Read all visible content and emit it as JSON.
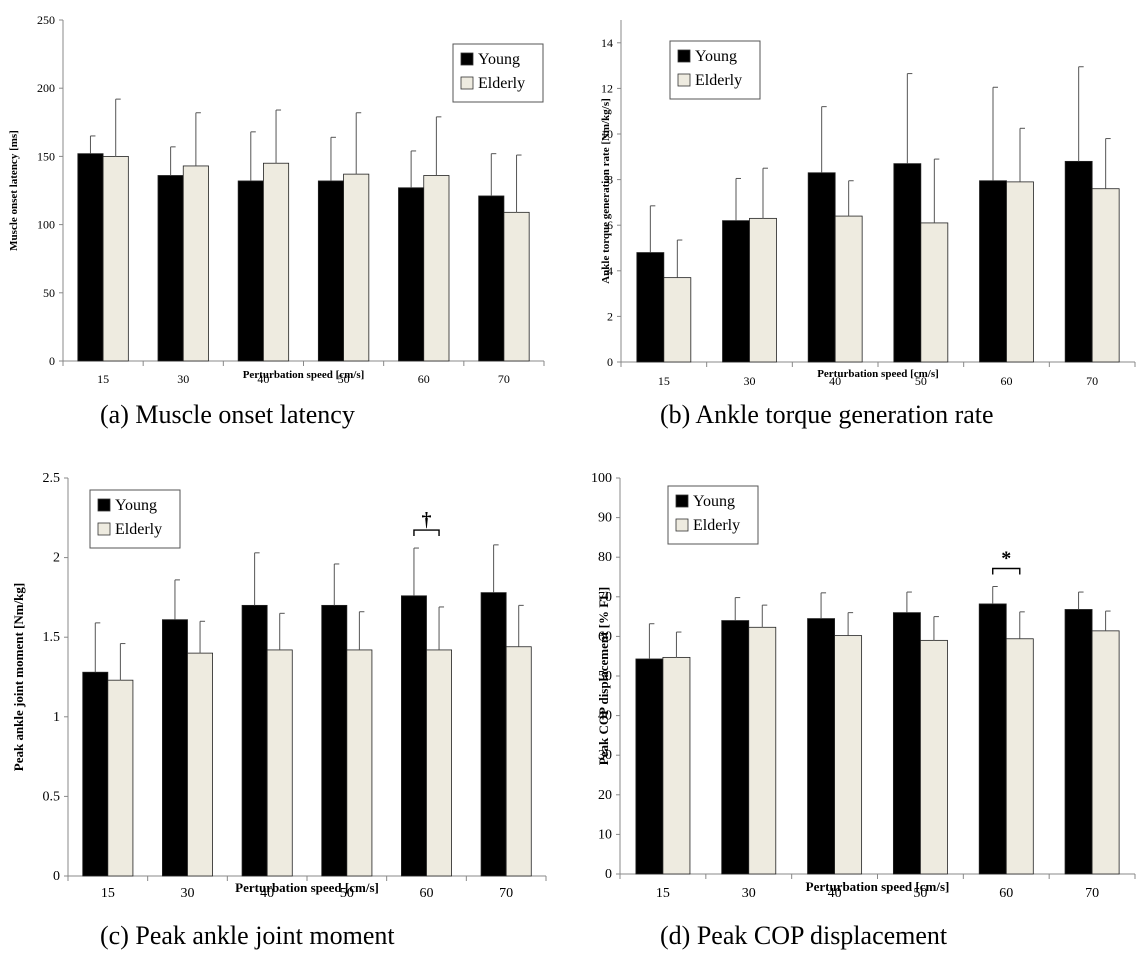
{
  "colors": {
    "young": "#000000",
    "elderly": "#eeebe0",
    "axis": "#888888"
  },
  "legend": {
    "young": "Young",
    "elderly": "Elderly"
  },
  "chart_data": [
    {
      "id": "a",
      "type": "bar",
      "caption": "(a) Muscle onset latency",
      "xlabel": "Perturbation speed [cm/s]",
      "ylabel": "Muscle onset latency [ms]",
      "ylim": [
        0,
        250
      ],
      "yticks": [
        "0",
        "50",
        "100",
        "150",
        "200",
        "250"
      ],
      "categories": [
        "15",
        "30",
        "40",
        "50",
        "60",
        "70"
      ],
      "legend_position": "top-right",
      "series": [
        {
          "name": "Young",
          "values": [
            152,
            136,
            132,
            132,
            127,
            121
          ],
          "errors": [
            13,
            21,
            36,
            32,
            27,
            31
          ]
        },
        {
          "name": "Elderly",
          "values": [
            150,
            143,
            145,
            137,
            136,
            109
          ],
          "errors": [
            42,
            39,
            39,
            45,
            43,
            42
          ]
        }
      ],
      "annotations": []
    },
    {
      "id": "b",
      "type": "bar",
      "caption": "(b) Ankle torque generation rate",
      "xlabel": "Perturbation speed [cm/s]",
      "ylabel": "Ankle torque generation rate [Nm/kg/s]",
      "ylim": [
        0,
        15
      ],
      "yticks": [
        "0",
        "2",
        "4",
        "6",
        "8",
        "10",
        "12",
        "14"
      ],
      "categories": [
        "15",
        "30",
        "40",
        "50",
        "60",
        "70"
      ],
      "legend_position": "top-left",
      "series": [
        {
          "name": "Young",
          "values": [
            4.8,
            6.2,
            8.3,
            8.7,
            7.95,
            8.8
          ],
          "errors": [
            2.05,
            1.85,
            2.9,
            3.95,
            4.1,
            4.15
          ]
        },
        {
          "name": "Elderly",
          "values": [
            3.7,
            6.3,
            6.4,
            6.1,
            7.9,
            7.6
          ],
          "errors": [
            1.65,
            2.2,
            1.55,
            2.8,
            2.35,
            2.2
          ]
        }
      ],
      "annotations": []
    },
    {
      "id": "c",
      "type": "bar",
      "caption": "(c) Peak ankle joint moment",
      "xlabel": "Perturbation speed [cm/s]",
      "ylabel": "Peak ankle joint moment [Nm/kg]",
      "ylim": [
        0,
        2.5
      ],
      "yticks": [
        "0",
        "0.5",
        "1",
        "1.5",
        "2",
        "2.5"
      ],
      "categories": [
        "15",
        "30",
        "40",
        "50",
        "60",
        "70"
      ],
      "legend_position": "top-left",
      "series": [
        {
          "name": "Young",
          "values": [
            1.28,
            1.61,
            1.7,
            1.7,
            1.76,
            1.78
          ],
          "errors": [
            0.31,
            0.25,
            0.33,
            0.26,
            0.3,
            0.3
          ]
        },
        {
          "name": "Elderly",
          "values": [
            1.23,
            1.4,
            1.42,
            1.42,
            1.42,
            1.44
          ],
          "errors": [
            0.23,
            0.2,
            0.23,
            0.24,
            0.27,
            0.26
          ]
        }
      ],
      "annotations": [
        {
          "category": "60",
          "symbol": "†"
        }
      ]
    },
    {
      "id": "d",
      "type": "bar",
      "caption": "(d) Peak COP displacement",
      "xlabel": "Perturbation speed [cm/s]",
      "ylabel": "Peak COP displacement [% FL]",
      "ylim": [
        0,
        100
      ],
      "yticks": [
        "0",
        "10",
        "20",
        "30",
        "40",
        "50",
        "60",
        "70",
        "80",
        "90",
        "100"
      ],
      "categories": [
        "15",
        "30",
        "40",
        "50",
        "60",
        "70"
      ],
      "legend_position": "top-left",
      "series": [
        {
          "name": "Young",
          "values": [
            54.3,
            64,
            64.5,
            66,
            68.2,
            66.8
          ],
          "errors": [
            8.9,
            5.8,
            6.5,
            5.2,
            4.4,
            4.4
          ]
        },
        {
          "name": "Elderly",
          "values": [
            54.7,
            62.3,
            60.2,
            59,
            59.4,
            61.4
          ],
          "errors": [
            6.4,
            5.6,
            5.8,
            6,
            6.8,
            5
          ]
        }
      ],
      "annotations": [
        {
          "category": "60",
          "symbol": "*"
        }
      ]
    }
  ]
}
